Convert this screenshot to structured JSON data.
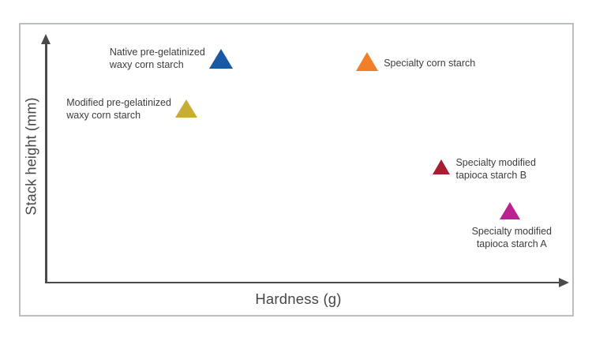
{
  "chart_data": {
    "type": "scatter",
    "title": "",
    "xlabel": "Hardness (g)",
    "ylabel": "Stack height (mm)",
    "grid": false,
    "legend": "none",
    "x_axis": {
      "min": 0,
      "max": 100,
      "tick_labels": "none",
      "style": "arrow-line"
    },
    "y_axis": {
      "min": 0,
      "max": 100,
      "tick_labels": "none",
      "style": "arrow-line"
    },
    "points": [
      {
        "name": "Native pre-gelatinized waxy corn starch",
        "label_lines": [
          "Native pre-gelatinized",
          "waxy corn starch"
        ],
        "x": 33.4,
        "y": 90.7,
        "color": "#1a57a5",
        "marker": "triangle-up",
        "size": 30,
        "label_position": "left"
      },
      {
        "name": "Modified pre-gelatinized waxy corn starch",
        "label_lines": [
          "Modified pre-gelatinized",
          "waxy corn starch"
        ],
        "x": 26.8,
        "y": 70.4,
        "color": "#c8ad32",
        "marker": "triangle-up",
        "size": 28,
        "label_position": "left"
      },
      {
        "name": "Specialty corn starch",
        "label_lines": [
          "Specialty corn starch"
        ],
        "x": 61.4,
        "y": 89.6,
        "color": "#f07f28",
        "marker": "triangle-up",
        "size": 29,
        "label_position": "right"
      },
      {
        "name": "Specialty modified tapioca starch B",
        "label_lines": [
          "Specialty modified",
          "tapioca starch B"
        ],
        "x": 75.6,
        "y": 46.8,
        "color": "#a51e31",
        "marker": "triangle-up",
        "size": 23,
        "label_position": "right"
      },
      {
        "name": "Specialty modified tapioca starch A",
        "label_lines": [
          "Specialty modified",
          "tapioca starch A"
        ],
        "x": 88.6,
        "y": 29.1,
        "color": "#bd2090",
        "marker": "triangle-up",
        "size": 27,
        "label_position": "below"
      }
    ],
    "colors": {
      "axis": "#4a4a4a",
      "frame_border": "#b9bfc4",
      "label_text": "#3c3c3c",
      "background": "#ffffff"
    }
  }
}
